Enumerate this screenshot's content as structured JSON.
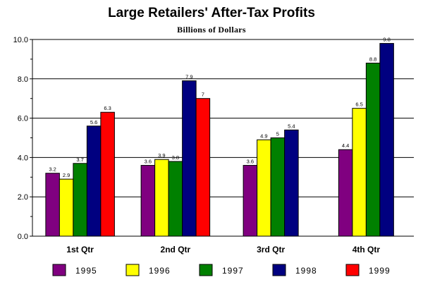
{
  "chart_data": {
    "type": "bar",
    "title": "Large Retailers' After-Tax Profits",
    "subtitle": "Billions of Dollars",
    "xlabel": "",
    "ylabel": "",
    "categories": [
      "1st Qtr",
      "2nd Qtr",
      "3rd Qtr",
      "4th Qtr"
    ],
    "ylim": [
      0,
      10
    ],
    "yticks": [
      "0.0",
      "2.0",
      "4.0",
      "6.0",
      "8.0",
      "10.0"
    ],
    "grid": true,
    "legend_position": "bottom",
    "series": [
      {
        "name": "1995",
        "color": "#800080",
        "values": [
          3.2,
          3.6,
          3.6,
          4.4
        ],
        "labels": [
          "3.2",
          "3.6",
          "3.6",
          "4.4"
        ]
      },
      {
        "name": "1996",
        "color": "#ffff00",
        "values": [
          2.9,
          3.9,
          4.9,
          6.5
        ],
        "labels": [
          "2.9",
          "3.9",
          "4.9",
          "6.5"
        ]
      },
      {
        "name": "1997",
        "color": "#008000",
        "values": [
          3.7,
          3.8,
          5.0,
          8.8
        ],
        "labels": [
          "3.7",
          "3.8",
          "5",
          "8.8"
        ]
      },
      {
        "name": "1998",
        "color": "#000080",
        "values": [
          5.6,
          7.9,
          5.4,
          9.8
        ],
        "labels": [
          "5.6",
          "7.9",
          "5.4",
          "9.8"
        ]
      },
      {
        "name": "1999",
        "color": "#ff0000",
        "values": [
          6.3,
          7.0,
          null,
          null
        ],
        "labels": [
          "6.3",
          "7",
          "",
          ""
        ]
      }
    ]
  }
}
